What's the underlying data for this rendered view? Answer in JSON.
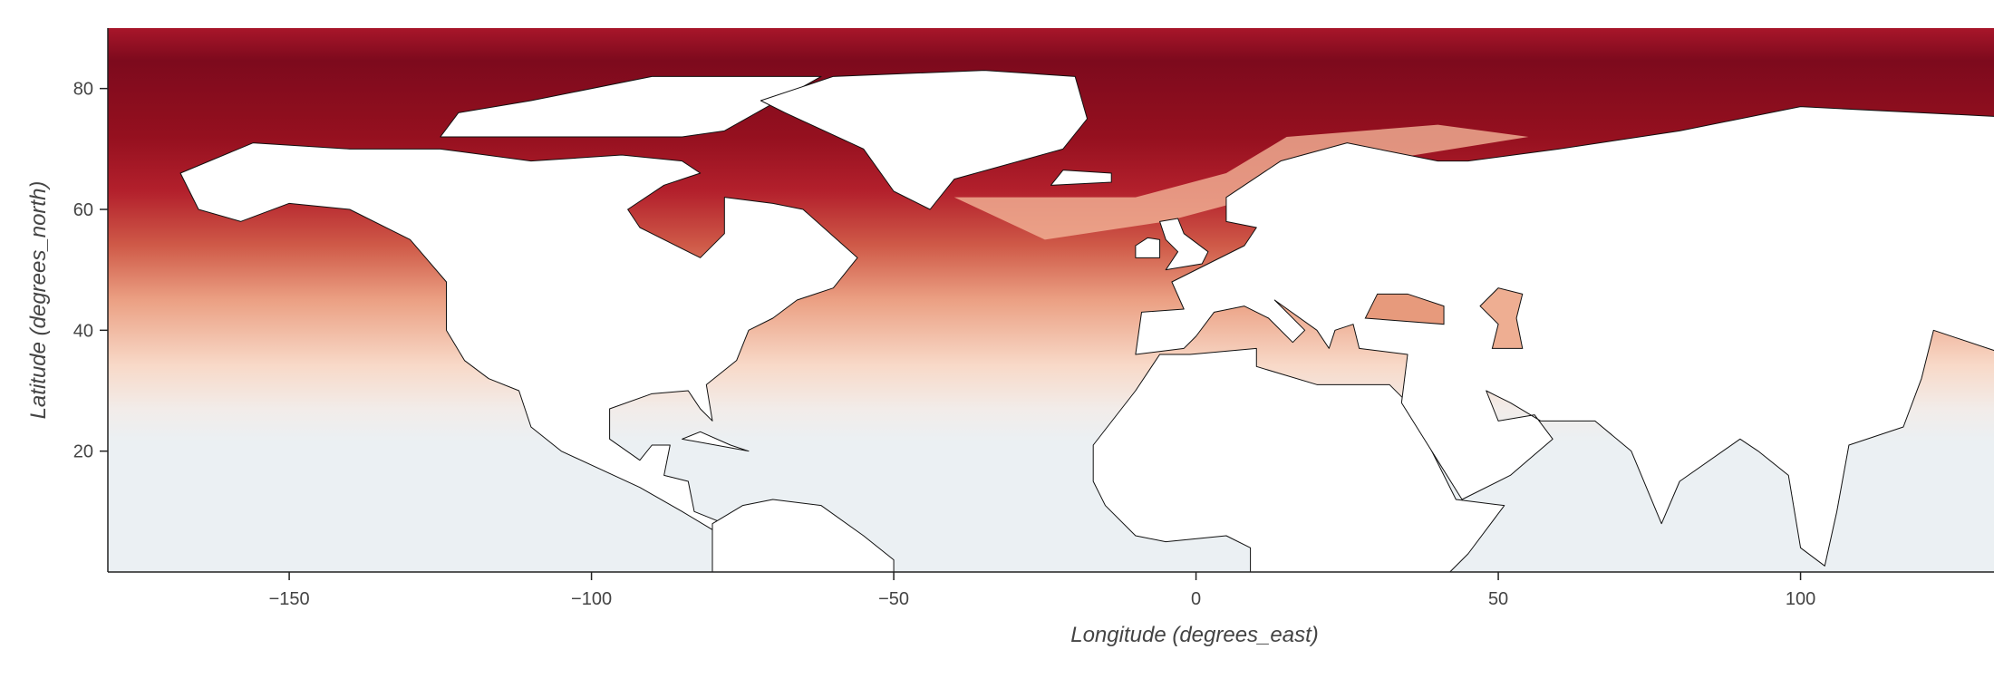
{
  "chart_data": {
    "type": "heatmap",
    "xlabel": "Longitude (degrees_east)",
    "ylabel": "Latitude (degrees_north)",
    "xlim": [
      -180,
      132
    ],
    "ylim": [
      0,
      90
    ],
    "xticks": [
      {
        "value": -150,
        "label": "−150"
      },
      {
        "value": -100,
        "label": "−100"
      },
      {
        "value": -50,
        "label": "−50"
      },
      0,
      50,
      100
    ],
    "yticks": [
      20,
      40,
      60,
      80
    ]
  }
}
